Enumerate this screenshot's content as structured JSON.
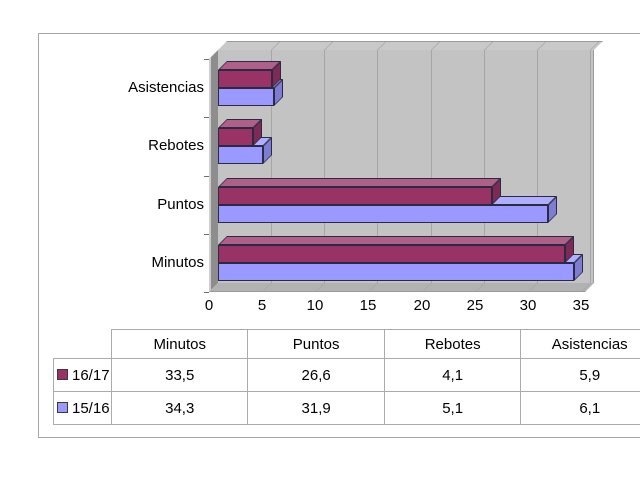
{
  "chart_data": {
    "type": "bar",
    "orientation": "horizontal",
    "title": "",
    "xlabel": "",
    "ylabel": "",
    "categories": [
      "Minutos",
      "Puntos",
      "Rebotes",
      "Asistencias"
    ],
    "series": [
      {
        "name": "16/17",
        "color": "#993366",
        "values": [
          33.5,
          26.6,
          4.1,
          5.9
        ]
      },
      {
        "name": "15/16",
        "color": "#9999FF",
        "values": [
          34.3,
          31.9,
          5.1,
          6.1
        ]
      }
    ],
    "xlim": [
      0,
      35
    ],
    "xticks": [
      0,
      5,
      10,
      15,
      20,
      25,
      30,
      35
    ],
    "grid": true,
    "decimal_separator": ",",
    "legend_position": "table-rows",
    "style_3d": true,
    "wall_color": "#c3c3c3",
    "side_wall_color": "#8d8d8d",
    "floor_color": "#b2b2b2",
    "gridline_color": "#a6a6a6"
  }
}
